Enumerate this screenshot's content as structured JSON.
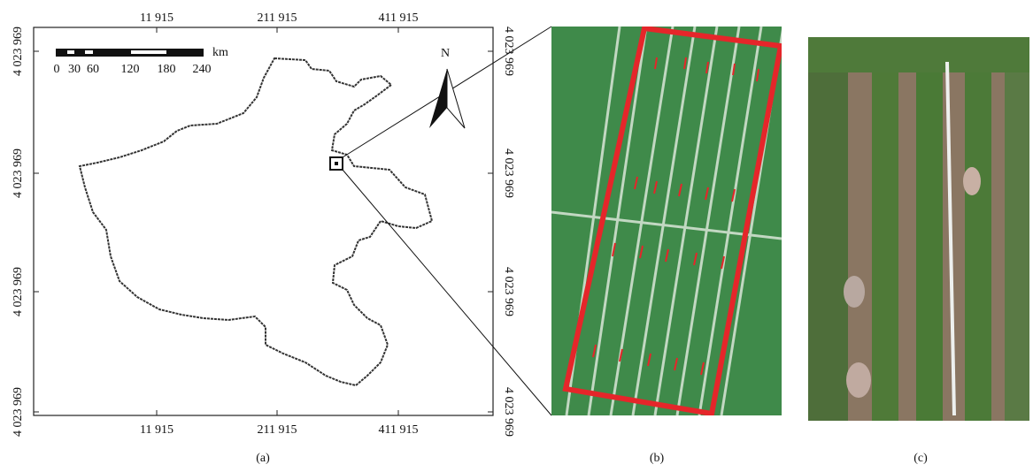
{
  "map": {
    "top_ticks": [
      "11 915",
      "211 915",
      "411 915"
    ],
    "bottom_ticks": [
      "11 915",
      "211 915",
      "411 915"
    ],
    "left_ticks": [
      "4 023 969",
      "4 023 969",
      "4 023 969",
      "4 023 969"
    ],
    "right_ticks": [
      "4 023 969",
      "4 023 969",
      "4 023 969",
      "4 023 969"
    ],
    "scale_unit": "km",
    "scale_ticks": [
      "0",
      "30",
      "60",
      "120",
      "180",
      "240"
    ],
    "north": "N"
  },
  "captions": [
    "(a)",
    "(b)",
    "(c)"
  ]
}
